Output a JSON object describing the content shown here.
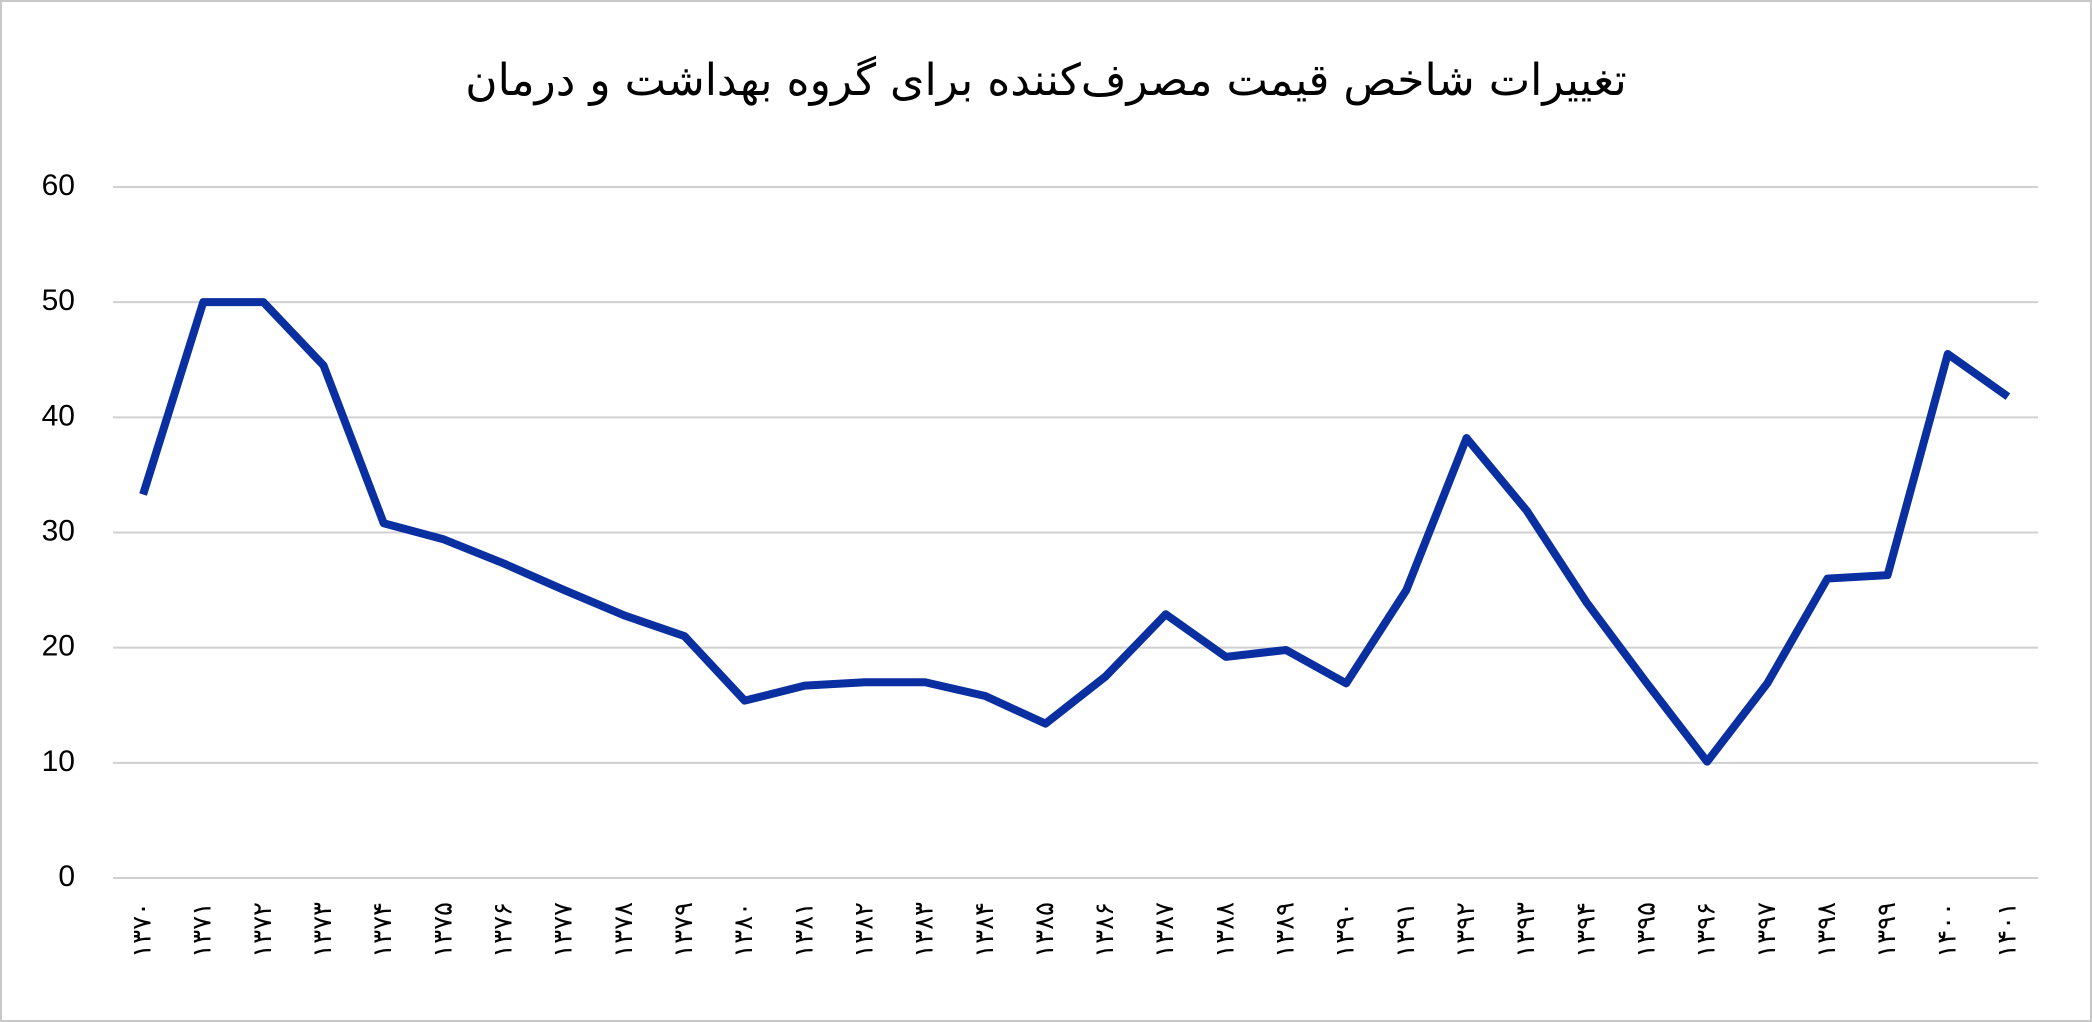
{
  "chart_data": {
    "type": "line",
    "title": "تغییرات شاخص قیمت مصرف‌کننده برای گروه بهداشت و درمان",
    "categories": [
      "۱۳۷۰",
      "۱۳۷۱",
      "۱۳۷۲",
      "۱۳۷۳",
      "۱۳۷۴",
      "۱۳۷۵",
      "۱۳۷۶",
      "۱۳۷۷",
      "۱۳۷۸",
      "۱۳۷۹",
      "۱۳۸۰",
      "۱۳۸۱",
      "۱۳۸۲",
      "۱۳۸۳",
      "۱۳۸۴",
      "۱۳۸۵",
      "۱۳۸۶",
      "۱۳۸۷",
      "۱۳۸۸",
      "۱۳۸۹",
      "۱۳۹۰",
      "۱۳۹۱",
      "۱۳۹۲",
      "۱۳۹۳",
      "۱۳۹۴",
      "۱۳۹۵",
      "۱۳۹۶",
      "۱۳۹۷",
      "۱۳۹۸",
      "۱۳۹۹",
      "۱۴۰۰",
      "۱۴۰۱"
    ],
    "values": [
      33.3,
      50,
      50,
      44.5,
      30.8,
      29.4,
      27.3,
      25.0,
      22.8,
      21.0,
      15.4,
      16.7,
      17.0,
      17.0,
      15.8,
      13.4,
      17.5,
      22.9,
      19.2,
      19.8,
      16.9,
      25.0,
      38.2,
      31.9,
      23.9,
      16.9,
      10.1,
      16.9,
      26.0,
      26.3,
      45.5,
      41.8
    ],
    "color": "#0a2fa0",
    "ylim": [
      0,
      60
    ],
    "yticks": [
      0,
      10,
      20,
      30,
      40,
      50,
      60
    ],
    "grid": true
  }
}
